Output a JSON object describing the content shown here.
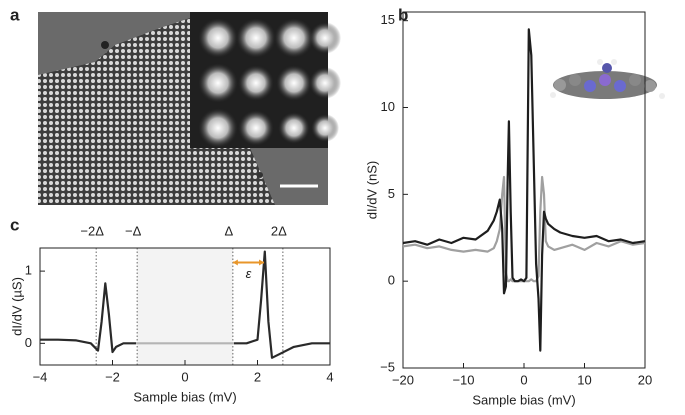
{
  "image_panel": {
    "panel_label": "a"
  },
  "chart_data": [
    {
      "type": "line",
      "panel_label": "b",
      "xlabel": "Sample bias (mV)",
      "ylabel": "dI/dV (nS)",
      "xlim": [
        -20,
        20
      ],
      "ylim": [
        -5,
        15.5
      ],
      "xticks": [
        {
          "value": -20,
          "label": "−20"
        },
        {
          "value": -10,
          "label": "−10"
        },
        0,
        10,
        20
      ],
      "yticks": [
        {
          "value": -5,
          "label": "−5"
        },
        0,
        5,
        10,
        15
      ],
      "x": [
        -20,
        -18,
        -16,
        -14,
        -12,
        -10,
        -8,
        -6,
        -5,
        -4.5,
        -4,
        -3.6,
        -3.3,
        -3,
        -2.7,
        -2.5,
        -2.2,
        -1.9,
        -1.5,
        -1,
        -0.5,
        0,
        0.4,
        0.8,
        1.2,
        1.6,
        2,
        2.4,
        2.7,
        3,
        3.3,
        3.6,
        4,
        5,
        6,
        8,
        10,
        12,
        14,
        16,
        18,
        20
      ],
      "series": [
        {
          "color": "#a0a0a0",
          "values": [
            2.0,
            2.1,
            1.9,
            2.0,
            1.8,
            1.7,
            1.8,
            1.7,
            1.9,
            2.3,
            3.0,
            5.0,
            6.0,
            0.5,
            0.0,
            0.0,
            0.1,
            0.0,
            0.0,
            0.0,
            0.0,
            0.0,
            0.0,
            0.0,
            0.1,
            0.0,
            0.0,
            0.3,
            4.0,
            6.0,
            5.0,
            2.3,
            2.0,
            1.8,
            1.9,
            2.1,
            1.8,
            2.2,
            2.0,
            2.3,
            2.1,
            2.2
          ]
        },
        {
          "color": "#1e1e1e",
          "values": [
            2.2,
            2.3,
            2.1,
            2.4,
            2.2,
            2.5,
            2.4,
            2.9,
            3.5,
            4.0,
            4.7,
            3.0,
            -0.7,
            -0.3,
            6.0,
            9.2,
            4.0,
            0.2,
            0,
            0,
            0.1,
            0,
            0.2,
            14.5,
            13.0,
            7,
            1,
            -1,
            -4,
            1.5,
            4.0,
            3.6,
            3.3,
            3.0,
            2.8,
            2.6,
            2.5,
            2.6,
            2.3,
            2.4,
            2.2,
            2.3
          ]
        }
      ]
    },
    {
      "type": "line",
      "panel_label": "c",
      "xlabel": "Sample bias (mV)",
      "ylabel": "dI/dV (µS)",
      "xlim": [
        -4,
        4
      ],
      "ylim": [
        -0.3,
        1.32
      ],
      "xticks": [
        {
          "value": -4,
          "label": "−4"
        },
        {
          "value": -2,
          "label": "−2"
        },
        0,
        2,
        4
      ],
      "yticks": [
        0,
        1
      ],
      "x": [
        -4,
        -3.5,
        -3,
        -2.6,
        -2.4,
        -2.3,
        -2.2,
        -2.1,
        -2.0,
        -1.9,
        -1.7,
        -1.35,
        -1,
        0,
        1,
        1.35,
        1.7,
        2.0,
        2.1,
        2.2,
        2.3,
        2.4,
        2.6,
        3,
        3.5,
        4
      ],
      "series": [
        {
          "color": "#2a2a2a",
          "values": [
            0.05,
            0.05,
            0.04,
            0.0,
            -0.1,
            0.3,
            0.83,
            0.4,
            -0.12,
            -0.05,
            0,
            0,
            null,
            null,
            null,
            0,
            0,
            0.05,
            0.6,
            1.27,
            0.3,
            -0.2,
            -0.15,
            -0.05,
            0,
            0
          ]
        },
        {
          "color": "#b4b4b4",
          "values": [
            null,
            null,
            null,
            null,
            null,
            null,
            null,
            null,
            null,
            null,
            null,
            0,
            0,
            0,
            0,
            0,
            null,
            null,
            null,
            null,
            null,
            null,
            null,
            null,
            null,
            null
          ]
        }
      ],
      "annotations": [
        {
          "text": "−2Δ",
          "x": -2.45
        },
        {
          "text": "−Δ",
          "x": -1.32
        },
        {
          "text": "Δ",
          "x": 1.32
        },
        {
          "text": "2Δ",
          "x": 2.7
        }
      ],
      "arrow": {
        "text": "ε",
        "x_start": 1.32,
        "x_end": 2.18,
        "y": 1.12,
        "color": "#e8962a"
      }
    }
  ]
}
